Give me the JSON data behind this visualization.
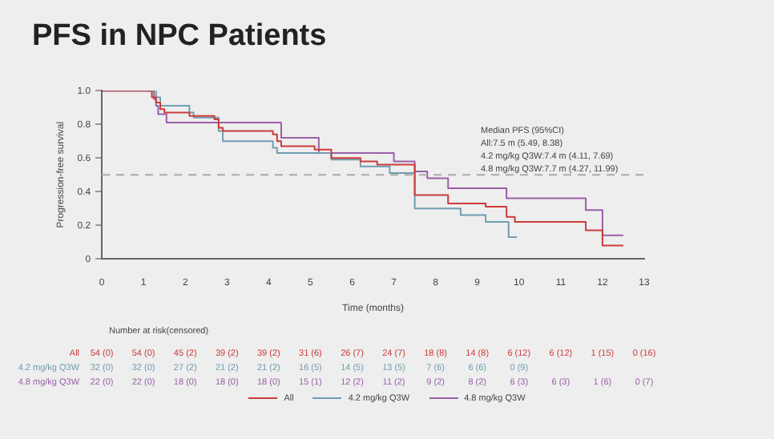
{
  "chart_data": {
    "type": "step",
    "title": "PFS in NPC Patients",
    "xlabel": "Time (months)",
    "ylabel": "Progression-free survival",
    "xlim": [
      0,
      13
    ],
    "xticks": [
      0,
      1,
      2,
      3,
      4,
      5,
      6,
      7,
      8,
      9,
      10,
      11,
      12,
      13
    ],
    "ylim": [
      0,
      1
    ],
    "yticks": [
      {
        "value": 0,
        "label": "0"
      },
      {
        "value": 0.2,
        "label": "0.2"
      },
      {
        "value": 0.4,
        "label": "0.4"
      },
      {
        "value": 0.6,
        "label": "0.6"
      },
      {
        "value": 0.8,
        "label": "0.8"
      },
      {
        "value": 1,
        "label": "1.0"
      }
    ],
    "grid": false,
    "legend": "bottom",
    "marker": "none",
    "line_style": "solid",
    "ref_lines": [
      {
        "axis": "y",
        "value": 0.5,
        "color": "#b5b5b5",
        "line_style": "dashed"
      }
    ],
    "series": [
      {
        "name": "All",
        "color": "#cc3b3b",
        "x": [
          0,
          1.2,
          1.3,
          1.4,
          1.5,
          2.1,
          2.7,
          2.8,
          2.9,
          4.1,
          4.2,
          4.3,
          5.1,
          5.5,
          6.2,
          6.6,
          7.5,
          8.3,
          9.2,
          9.7,
          9.9,
          11.6,
          12.0,
          12.5
        ],
        "values": [
          1,
          0.96,
          0.93,
          0.89,
          0.87,
          0.85,
          0.83,
          0.78,
          0.76,
          0.74,
          0.7,
          0.67,
          0.65,
          0.6,
          0.58,
          0.56,
          0.38,
          0.33,
          0.31,
          0.25,
          0.22,
          0.17,
          0.08,
          0.08
        ]
      },
      {
        "name": "4.2 mg/kg Q3W",
        "color": "#6f9db0",
        "x": [
          0,
          1.3,
          1.4,
          2.1,
          2.2,
          2.8,
          2.9,
          4.1,
          4.2,
          5.5,
          6.2,
          6.9,
          7.5,
          8.6,
          9.2,
          9.75,
          9.95
        ],
        "values": [
          1,
          0.96,
          0.91,
          0.87,
          0.84,
          0.76,
          0.7,
          0.66,
          0.63,
          0.59,
          0.55,
          0.51,
          0.3,
          0.26,
          0.22,
          0.13,
          0.13
        ]
      },
      {
        "name": "4.8 mg/kg Q3W",
        "color": "#9a5fa8",
        "x": [
          0,
          1.25,
          1.3,
          1.35,
          1.55,
          4.3,
          5.2,
          7.0,
          7.5,
          7.8,
          8.3,
          9.7,
          11.6,
          12.0,
          12.5
        ],
        "values": [
          1,
          0.95,
          0.91,
          0.86,
          0.81,
          0.72,
          0.63,
          0.58,
          0.52,
          0.48,
          0.42,
          0.36,
          0.29,
          0.14,
          0.14
        ]
      }
    ],
    "annotations": [
      "Median PFS (95%CI)",
      "All:7.5 m (5.49, 8.38)",
      "4.2 mg/kg Q3W:7.4 m (4.11, 7.69)",
      "4.8 mg/kg Q3W:7.7 m (4.27, 11.99)",
      "Number at risk(censored)",
      "All",
      "54 (0) 54 (0) 45 (2) 39 (2) 39 (2) 31 (6) 26 (7) 24 (7) 18 (8) 14 (8) 6 (12) 6 (12) 1 (15) 0 (16)",
      "4.2 mg/kg Q3W",
      "32 (0) 32 (0) 27 (2) 21 (2) 21 (2) 16 (5) 14 (5) 13 (5) 7 (6) 6 (6) 0 (9)",
      "4.8 mg/kg Q3W",
      "22 (0) 22 (0) 18 (0) 18 (0) 18 (0) 15 (1) 12 (2) 11 (2) 9 (2) 8 (2) 6 (3) 6 (3) 1 (6) 0 (7)"
    ]
  }
}
